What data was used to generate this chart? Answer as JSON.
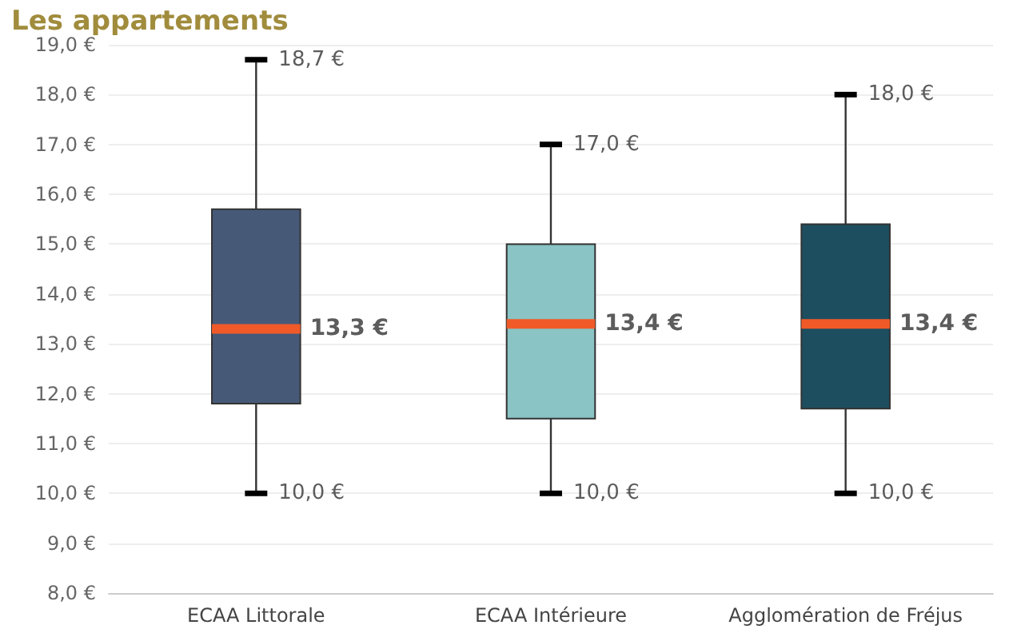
{
  "chart_data": {
    "type": "box",
    "title": "Les appartements",
    "categories": [
      "ECAA Littorale",
      "ECAA Intérieure",
      "Agglomération de Fréjus"
    ],
    "series": [
      {
        "color": "#f05a28",
        "colors": [
          "#465a78",
          "#8ac4c4",
          "#1d4e5f"
        ],
        "boxes": [
          {
            "low": 10.0,
            "q1": 11.8,
            "median": 13.3,
            "q3": 15.7,
            "high": 18.7
          },
          {
            "low": 10.0,
            "q1": 11.5,
            "median": 13.4,
            "q3": 15.0,
            "high": 17.0
          },
          {
            "low": 10.0,
            "q1": 11.7,
            "median": 13.4,
            "q3": 15.4,
            "high": 18.0
          }
        ]
      }
    ],
    "ylim": [
      8,
      19
    ],
    "yticks": [
      {
        "value": 8,
        "label": "8,0 €"
      },
      {
        "value": 9,
        "label": "9,0 €"
      },
      {
        "value": 10,
        "label": "10,0 €"
      },
      {
        "value": 11,
        "label": "11,0 €"
      },
      {
        "value": 12,
        "label": "12,0 €"
      },
      {
        "value": 13,
        "label": "13,0 €"
      },
      {
        "value": 14,
        "label": "14,0 €"
      },
      {
        "value": 15,
        "label": "15,0 €"
      },
      {
        "value": 16,
        "label": "16,0 €"
      },
      {
        "value": 17,
        "label": "17,0 €"
      },
      {
        "value": 18,
        "label": "18,0 €"
      },
      {
        "value": 19,
        "label": "19,0 €"
      }
    ],
    "grid": "y",
    "annotations": [
      {
        "text": "18,7 €",
        "x": "ECAA Littorale",
        "y": 18.7
      },
      {
        "text": "13,3 €",
        "x": "ECAA Littorale",
        "y": 13.3
      },
      {
        "text": "10,0 €",
        "x": "ECAA Littorale",
        "y": 10.0
      },
      {
        "text": "17,0 €",
        "x": "ECAA Intérieure",
        "y": 17.0
      },
      {
        "text": "13,4 €",
        "x": "ECAA Intérieure",
        "y": 13.4
      },
      {
        "text": "10,0 €",
        "x": "ECAA Intérieure",
        "y": 10.0
      },
      {
        "text": "18,0 €",
        "x": "Agglomération de Fréjus",
        "y": 18.0
      },
      {
        "text": "13,4 €",
        "x": "Agglomération de Fréjus",
        "y": 13.4
      },
      {
        "text": "10,0 €",
        "x": "Agglomération de Fréjus",
        "y": 10.0
      }
    ]
  }
}
